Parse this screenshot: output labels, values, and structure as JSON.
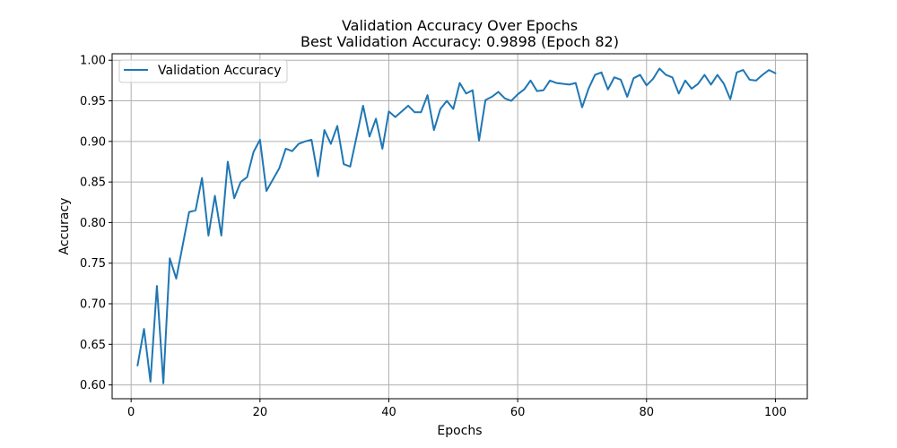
{
  "chart_data": {
    "type": "line",
    "title": "Validation Accuracy Over Epochs",
    "subtitle": "Best Validation Accuracy: 0.9898 (Epoch 82)",
    "xlabel": "Epochs",
    "ylabel": "Accuracy",
    "xlim": [
      -2.95,
      104.95
    ],
    "ylim": [
      0.583,
      1.008
    ],
    "xticks": [
      0,
      20,
      40,
      60,
      80,
      100
    ],
    "xtick_labels": [
      "0",
      "20",
      "40",
      "60",
      "80",
      "100"
    ],
    "yticks": [
      0.6,
      0.65,
      0.7,
      0.75,
      0.8,
      0.85,
      0.9,
      0.95,
      1.0
    ],
    "ytick_labels": [
      "0.60",
      "0.65",
      "0.70",
      "0.75",
      "0.80",
      "0.85",
      "0.90",
      "0.95",
      "1.00"
    ],
    "grid": true,
    "legend_position": "top-left",
    "series": [
      {
        "name": "Validation Accuracy",
        "color": "#1f77b4",
        "x": [
          1,
          2,
          3,
          4,
          5,
          6,
          7,
          8,
          9,
          10,
          11,
          12,
          13,
          14,
          15,
          16,
          17,
          18,
          19,
          20,
          21,
          22,
          23,
          24,
          25,
          26,
          27,
          28,
          29,
          30,
          31,
          32,
          33,
          34,
          35,
          36,
          37,
          38,
          39,
          40,
          41,
          42,
          43,
          44,
          45,
          46,
          47,
          48,
          49,
          50,
          51,
          52,
          53,
          54,
          55,
          56,
          57,
          58,
          59,
          60,
          61,
          62,
          63,
          64,
          65,
          66,
          67,
          68,
          69,
          70,
          71,
          72,
          73,
          74,
          75,
          76,
          77,
          78,
          79,
          80,
          81,
          82,
          83,
          84,
          85,
          86,
          87,
          88,
          89,
          90,
          91,
          92,
          93,
          94,
          95,
          96,
          97,
          98,
          99,
          100
        ],
        "values": [
          0.624,
          0.669,
          0.604,
          0.722,
          0.602,
          0.756,
          0.731,
          0.772,
          0.813,
          0.815,
          0.855,
          0.784,
          0.833,
          0.784,
          0.875,
          0.83,
          0.85,
          0.856,
          0.887,
          0.902,
          0.839,
          0.853,
          0.867,
          0.891,
          0.888,
          0.897,
          0.9,
          0.902,
          0.857,
          0.914,
          0.897,
          0.919,
          0.872,
          0.869,
          0.906,
          0.944,
          0.906,
          0.928,
          0.891,
          0.937,
          0.93,
          0.937,
          0.944,
          0.936,
          0.936,
          0.957,
          0.914,
          0.94,
          0.95,
          0.94,
          0.972,
          0.959,
          0.963,
          0.901,
          0.951,
          0.955,
          0.961,
          0.953,
          0.95,
          0.958,
          0.964,
          0.975,
          0.962,
          0.963,
          0.975,
          0.972,
          0.971,
          0.97,
          0.972,
          0.942,
          0.965,
          0.982,
          0.985,
          0.964,
          0.979,
          0.976,
          0.955,
          0.978,
          0.982,
          0.969,
          0.977,
          0.9898,
          0.982,
          0.979,
          0.959,
          0.975,
          0.965,
          0.971,
          0.982,
          0.97,
          0.982,
          0.971,
          0.952,
          0.985,
          0.988,
          0.976,
          0.975,
          0.982,
          0.988,
          0.984
        ]
      }
    ]
  }
}
